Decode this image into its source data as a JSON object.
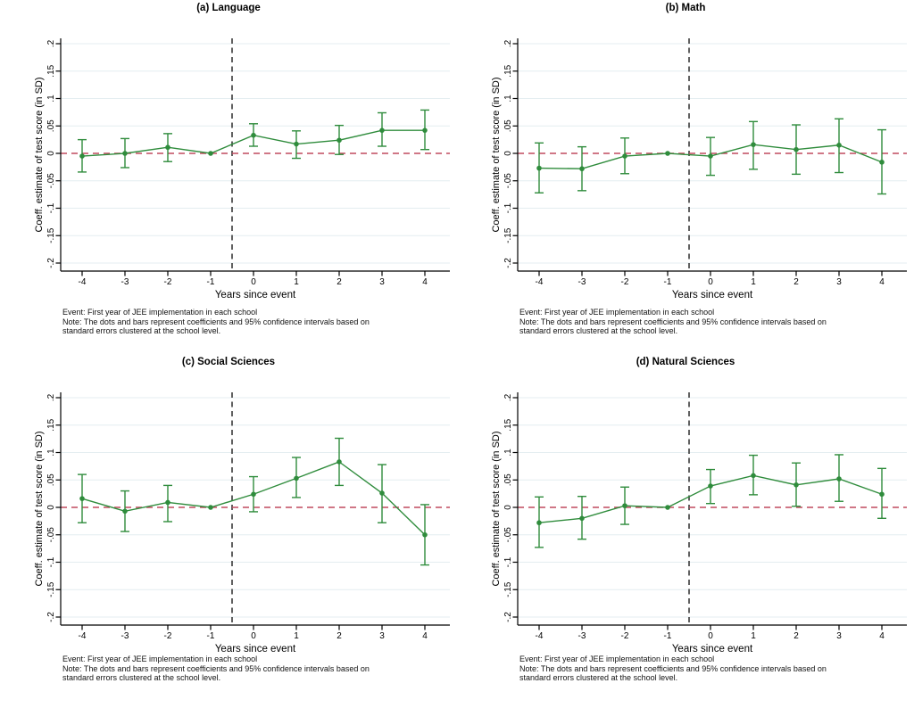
{
  "axis": {
    "x_label": "Years since event",
    "y_label": "Coeff. estimate of test score (in SD)",
    "x_ticks": [
      -4,
      -3,
      -2,
      -1,
      0,
      1,
      2,
      3,
      4
    ],
    "x_tick_labels": [
      "-4",
      "-3",
      "-2",
      "-1",
      "0",
      "1",
      "2",
      "3",
      "4"
    ],
    "y_ticks": [
      0.2,
      0.15,
      0.1,
      0.05,
      0,
      -0.05,
      -0.1,
      -0.15,
      -0.2
    ],
    "y_tick_labels": [
      ".2",
      ".15",
      ".1",
      ".05",
      "0",
      "-.05",
      "-.1",
      "-.15",
      "-.2"
    ]
  },
  "notes": [
    "Event: First year of JEE implementation in each school",
    "Note: The dots and bars represent coefficients and 95% confidence intervals based on",
    "standard errors clustered at the school level."
  ],
  "colors": {
    "series": "#2f8c3c",
    "zero_line": "#c04a5f",
    "event_line": "#3a3a3a",
    "grid_line": "#e4edf0",
    "axis_line": "#000000",
    "text": "#000000",
    "fragment_green": "#4d7154"
  },
  "chart_data": [
    {
      "type": "line",
      "title": "(a) Language",
      "xlabel": "Years since event",
      "ylabel": "Coeff. estimate of test score (in SD)",
      "x": [
        -4,
        -3,
        -2,
        -1,
        0,
        1,
        2,
        3,
        4
      ],
      "xticks": [
        -4,
        -3,
        -2,
        -1,
        0,
        1,
        2,
        3,
        4
      ],
      "yticks": [
        0.2,
        0.15,
        0.1,
        0.05,
        0,
        -0.05,
        -0.1,
        -0.15,
        -0.2
      ],
      "xlim": [
        -4.5,
        4.6
      ],
      "ylim": [
        -0.2,
        0.2
      ],
      "grid": true,
      "legend": "none",
      "reference_x": -1,
      "vline_x": -0.5,
      "hline_y": 0,
      "series": [
        {
          "name": "coefficient",
          "y": [
            -0.005,
            0.0,
            0.011,
            0.0,
            0.033,
            0.017,
            0.024,
            0.042,
            0.042
          ],
          "ci_low": [
            -0.034,
            -0.026,
            -0.015,
            0.0,
            0.013,
            -0.009,
            -0.002,
            0.013,
            0.007
          ],
          "ci_high": [
            0.025,
            0.027,
            0.036,
            0.0,
            0.054,
            0.041,
            0.051,
            0.074,
            0.079
          ]
        }
      ]
    },
    {
      "type": "line",
      "title": "(b) Math",
      "xlabel": "Years since event",
      "ylabel": "Coeff. estimate of test score (in SD)",
      "x": [
        -4,
        -3,
        -2,
        -1,
        0,
        1,
        2,
        3,
        4
      ],
      "xticks": [
        -4,
        -3,
        -2,
        -1,
        0,
        1,
        2,
        3,
        4
      ],
      "yticks": [
        0.2,
        0.15,
        0.1,
        0.05,
        0,
        -0.05,
        -0.1,
        -0.15,
        -0.2
      ],
      "xlim": [
        -4.5,
        4.6
      ],
      "ylim": [
        -0.2,
        0.2
      ],
      "grid": true,
      "legend": "none",
      "reference_x": -1,
      "vline_x": -0.5,
      "hline_y": 0,
      "series": [
        {
          "name": "coefficient",
          "y": [
            -0.027,
            -0.028,
            -0.005,
            0.0,
            -0.005,
            0.016,
            0.007,
            0.015,
            -0.016
          ],
          "ci_low": [
            -0.072,
            -0.068,
            -0.037,
            0.0,
            -0.04,
            -0.029,
            -0.038,
            -0.035,
            -0.074
          ],
          "ci_high": [
            0.019,
            0.012,
            0.028,
            0.0,
            0.029,
            0.058,
            0.052,
            0.063,
            0.043
          ]
        }
      ]
    },
    {
      "type": "line",
      "title": "(c) Social Sciences",
      "xlabel": "Years since event",
      "ylabel": "Coeff. estimate of test score (in SD)",
      "x": [
        -4,
        -3,
        -2,
        -1,
        0,
        1,
        2,
        3,
        4
      ],
      "xticks": [
        -4,
        -3,
        -2,
        -1,
        0,
        1,
        2,
        3,
        4
      ],
      "yticks": [
        0.2,
        0.15,
        0.1,
        0.05,
        0,
        -0.05,
        -0.1,
        -0.15,
        -0.2
      ],
      "xlim": [
        -4.5,
        4.6
      ],
      "ylim": [
        -0.2,
        0.2
      ],
      "grid": true,
      "legend": "none",
      "reference_x": -1,
      "vline_x": -0.5,
      "hline_y": 0,
      "series": [
        {
          "name": "coefficient",
          "y": [
            0.016,
            -0.007,
            0.009,
            0.0,
            0.024,
            0.053,
            0.083,
            0.026,
            -0.05
          ],
          "ci_low": [
            -0.028,
            -0.044,
            -0.026,
            0.0,
            -0.008,
            0.018,
            0.04,
            -0.028,
            -0.105
          ],
          "ci_high": [
            0.06,
            0.03,
            0.04,
            0.0,
            0.056,
            0.091,
            0.126,
            0.078,
            0.005
          ]
        }
      ]
    },
    {
      "type": "line",
      "title": "(d) Natural Sciences",
      "xlabel": "Years since event",
      "ylabel": "Coeff. estimate of test score (in SD)",
      "x": [
        -4,
        -3,
        -2,
        -1,
        0,
        1,
        2,
        3,
        4
      ],
      "xticks": [
        -4,
        -3,
        -2,
        -1,
        0,
        1,
        2,
        3,
        4
      ],
      "yticks": [
        0.2,
        0.15,
        0.1,
        0.05,
        0,
        -0.05,
        -0.1,
        -0.15,
        -0.2
      ],
      "xlim": [
        -4.5,
        4.6
      ],
      "ylim": [
        -0.2,
        0.2
      ],
      "grid": true,
      "legend": "none",
      "reference_x": -1,
      "vline_x": -0.5,
      "hline_y": 0,
      "series": [
        {
          "name": "coefficient",
          "y": [
            -0.028,
            -0.02,
            0.003,
            0.0,
            0.039,
            0.058,
            0.041,
            0.052,
            0.024
          ],
          "ci_low": [
            -0.073,
            -0.058,
            -0.031,
            0.0,
            0.007,
            0.023,
            0.002,
            0.011,
            -0.02
          ],
          "ci_high": [
            0.019,
            0.02,
            0.037,
            0.0,
            0.069,
            0.095,
            0.081,
            0.096,
            0.071
          ]
        }
      ]
    }
  ]
}
